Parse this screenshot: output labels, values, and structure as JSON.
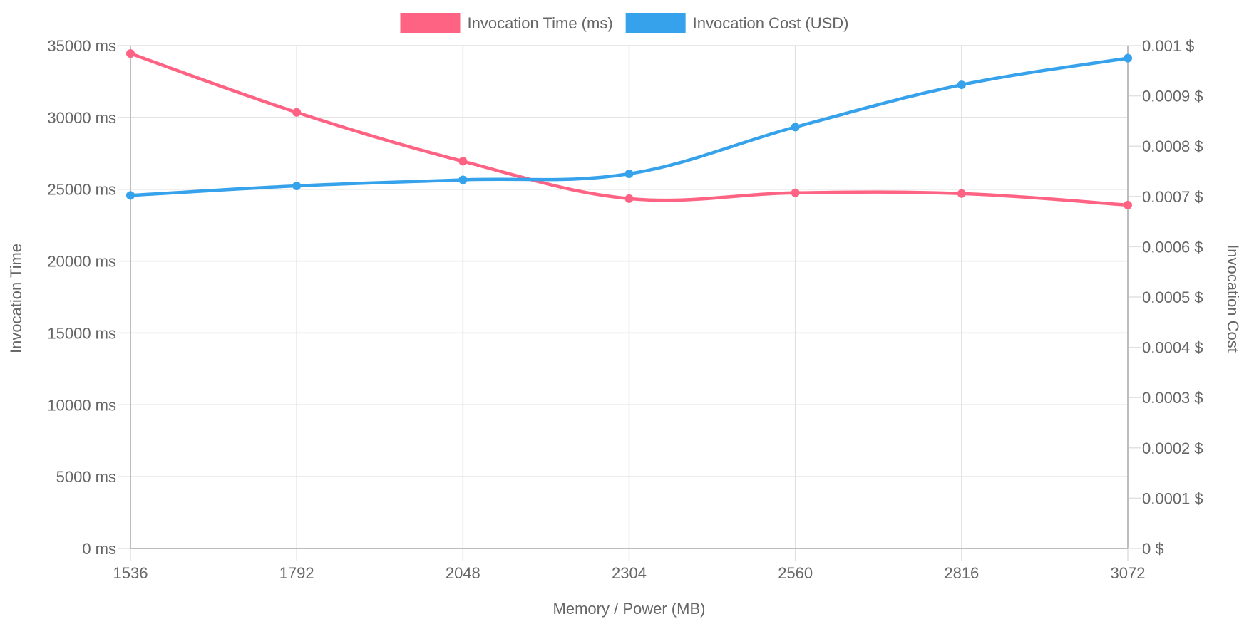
{
  "chart_data": {
    "type": "line",
    "title": "",
    "xlabel": "Memory / Power (MB)",
    "categories": [
      "1536",
      "1792",
      "2048",
      "2304",
      "2560",
      "2816",
      "3072"
    ],
    "y_left": {
      "label": "Invocation Time",
      "range": [
        0,
        35000
      ],
      "ticks": [
        {
          "value": 0,
          "label": "0 ms"
        },
        {
          "value": 5000,
          "label": "5000 ms"
        },
        {
          "value": 10000,
          "label": "10000 ms"
        },
        {
          "value": 15000,
          "label": "15000 ms"
        },
        {
          "value": 20000,
          "label": "20000 ms"
        },
        {
          "value": 25000,
          "label": "25000 ms"
        },
        {
          "value": 30000,
          "label": "30000 ms"
        },
        {
          "value": 35000,
          "label": "35000 ms"
        }
      ]
    },
    "y_right": {
      "label": "Invocation Cost",
      "range": [
        0,
        0.001
      ],
      "ticks": [
        {
          "value": 0,
          "label": "0 $"
        },
        {
          "value": 0.0001,
          "label": "0.0001 $"
        },
        {
          "value": 0.0002,
          "label": "0.0002 $"
        },
        {
          "value": 0.0003,
          "label": "0.0003 $"
        },
        {
          "value": 0.0004,
          "label": "0.0004 $"
        },
        {
          "value": 0.0005,
          "label": "0.0005 $"
        },
        {
          "value": 0.0006,
          "label": "0.0006 $"
        },
        {
          "value": 0.0007,
          "label": "0.0007 $"
        },
        {
          "value": 0.0008,
          "label": "0.0008 $"
        },
        {
          "value": 0.0009,
          "label": "0.0009 $"
        },
        {
          "value": 0.001,
          "label": "0.001 $"
        }
      ]
    },
    "series": [
      {
        "name": "Invocation Time (ms)",
        "key": "time",
        "axis": "left",
        "color": "#ff6384",
        "values": [
          34450,
          30350,
          26950,
          24350,
          24750,
          24700,
          23900
        ]
      },
      {
        "name": "Invocation Cost (USD)",
        "key": "cost",
        "axis": "right",
        "color": "#36a2eb",
        "values": [
          0.000702,
          0.000721,
          0.000733,
          0.000745,
          0.000838,
          0.000922,
          0.000975
        ]
      }
    ],
    "grid": true,
    "legend_position": "top-center"
  }
}
